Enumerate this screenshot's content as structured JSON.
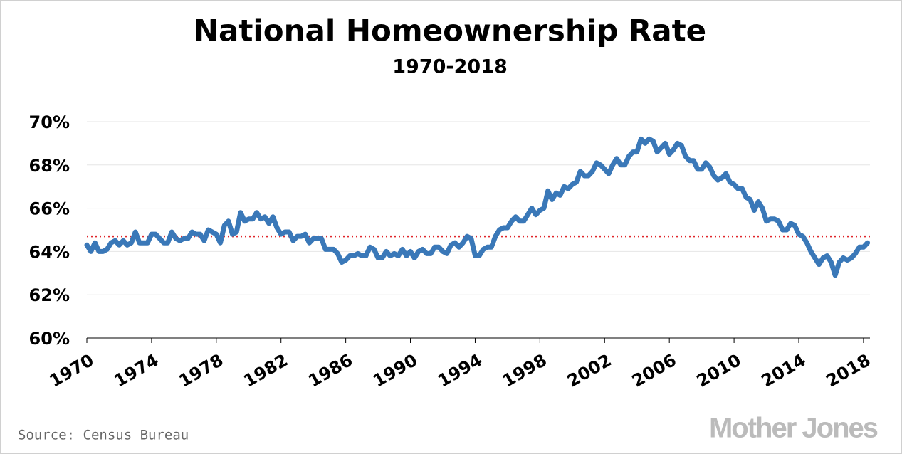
{
  "chart_data": {
    "type": "line",
    "title": "National Homeownership Rate",
    "subtitle": "1970-2018",
    "source": "Source: Census Bureau",
    "logo": "Mother Jones",
    "x": [
      1970,
      1970.25,
      1970.5,
      1970.75,
      1971,
      1971.25,
      1971.5,
      1971.75,
      1972,
      1972.25,
      1972.5,
      1972.75,
      1973,
      1973.25,
      1973.5,
      1973.75,
      1974,
      1974.25,
      1974.5,
      1974.75,
      1975,
      1975.25,
      1975.5,
      1975.75,
      1976,
      1976.25,
      1976.5,
      1976.75,
      1977,
      1977.25,
      1977.5,
      1977.75,
      1978,
      1978.25,
      1978.5,
      1978.75,
      1979,
      1979.25,
      1979.5,
      1979.75,
      1980,
      1980.25,
      1980.5,
      1980.75,
      1981,
      1981.25,
      1981.5,
      1981.75,
      1982,
      1982.25,
      1982.5,
      1982.75,
      1983,
      1983.25,
      1983.5,
      1983.75,
      1984,
      1984.25,
      1984.5,
      1984.75,
      1985,
      1985.25,
      1985.5,
      1985.75,
      1986,
      1986.25,
      1986.5,
      1986.75,
      1987,
      1987.25,
      1987.5,
      1987.75,
      1988,
      1988.25,
      1988.5,
      1988.75,
      1989,
      1989.25,
      1989.5,
      1989.75,
      1990,
      1990.25,
      1990.5,
      1990.75,
      1991,
      1991.25,
      1991.5,
      1991.75,
      1992,
      1992.25,
      1992.5,
      1992.75,
      1993,
      1993.25,
      1993.5,
      1993.75,
      1994,
      1994.25,
      1994.5,
      1994.75,
      1995,
      1995.25,
      1995.5,
      1995.75,
      1996,
      1996.25,
      1996.5,
      1996.75,
      1997,
      1997.25,
      1997.5,
      1997.75,
      1998,
      1998.25,
      1998.5,
      1998.75,
      1999,
      1999.25,
      1999.5,
      1999.75,
      2000,
      2000.25,
      2000.5,
      2000.75,
      2001,
      2001.25,
      2001.5,
      2001.75,
      2002,
      2002.25,
      2002.5,
      2002.75,
      2003,
      2003.25,
      2003.5,
      2003.75,
      2004,
      2004.25,
      2004.5,
      2004.75,
      2005,
      2005.25,
      2005.5,
      2005.75,
      2006,
      2006.25,
      2006.5,
      2006.75,
      2007,
      2007.25,
      2007.5,
      2007.75,
      2008,
      2008.25,
      2008.5,
      2008.75,
      2009,
      2009.25,
      2009.5,
      2009.75,
      2010,
      2010.25,
      2010.5,
      2010.75,
      2011,
      2011.25,
      2011.5,
      2011.75,
      2012,
      2012.25,
      2012.5,
      2012.75,
      2013,
      2013.25,
      2013.5,
      2013.75,
      2014,
      2014.25,
      2014.5,
      2014.75,
      2015,
      2015.25,
      2015.5,
      2015.75,
      2016,
      2016.25,
      2016.5,
      2016.75,
      2017,
      2017.25,
      2017.5,
      2017.75,
      2018,
      2018.25
    ],
    "series": [
      {
        "name": "Homeownership rate",
        "color": "#3a78b8",
        "values": [
          64.3,
          64.0,
          64.4,
          64.0,
          64.0,
          64.1,
          64.4,
          64.5,
          64.3,
          64.5,
          64.3,
          64.4,
          64.9,
          64.4,
          64.4,
          64.4,
          64.8,
          64.8,
          64.6,
          64.4,
          64.4,
          64.9,
          64.6,
          64.5,
          64.6,
          64.6,
          64.9,
          64.8,
          64.8,
          64.5,
          65.0,
          64.9,
          64.8,
          64.4,
          65.2,
          65.4,
          64.8,
          64.9,
          65.8,
          65.4,
          65.5,
          65.5,
          65.8,
          65.5,
          65.6,
          65.3,
          65.6,
          65.1,
          64.8,
          64.9,
          64.9,
          64.5,
          64.7,
          64.7,
          64.8,
          64.4,
          64.6,
          64.6,
          64.6,
          64.1,
          64.1,
          64.1,
          63.9,
          63.5,
          63.6,
          63.8,
          63.8,
          63.9,
          63.8,
          63.8,
          64.2,
          64.1,
          63.7,
          63.7,
          64.0,
          63.8,
          63.9,
          63.8,
          64.1,
          63.8,
          64.0,
          63.7,
          64.0,
          64.1,
          63.9,
          63.9,
          64.2,
          64.2,
          64.0,
          63.9,
          64.3,
          64.4,
          64.2,
          64.4,
          64.7,
          64.6,
          63.8,
          63.8,
          64.1,
          64.2,
          64.2,
          64.7,
          65.0,
          65.1,
          65.1,
          65.4,
          65.6,
          65.4,
          65.4,
          65.7,
          66.0,
          65.7,
          65.9,
          66.0,
          66.8,
          66.4,
          66.7,
          66.6,
          67.0,
          66.9,
          67.1,
          67.2,
          67.7,
          67.5,
          67.5,
          67.7,
          68.1,
          68.0,
          67.8,
          67.6,
          68.0,
          68.3,
          68.0,
          68.0,
          68.4,
          68.6,
          68.6,
          69.2,
          69.0,
          69.2,
          69.1,
          68.6,
          68.8,
          69.0,
          68.5,
          68.7,
          69.0,
          68.9,
          68.4,
          68.2,
          68.2,
          67.8,
          67.8,
          68.1,
          67.9,
          67.5,
          67.3,
          67.4,
          67.6,
          67.2,
          67.1,
          66.9,
          66.9,
          66.5,
          66.4,
          65.9,
          66.3,
          66.0,
          65.4,
          65.5,
          65.5,
          65.4,
          65.0,
          65.0,
          65.3,
          65.2,
          64.8,
          64.7,
          64.4,
          64.0,
          63.7,
          63.4,
          63.7,
          63.8,
          63.5,
          62.9,
          63.5,
          63.7,
          63.6,
          63.7,
          63.9,
          64.2,
          64.2,
          64.4
        ]
      }
    ],
    "reference": {
      "value": 64.7,
      "color": "#e0262b"
    },
    "xlim": [
      1970,
      2018.4
    ],
    "xticks": [
      1970,
      1974,
      1978,
      1982,
      1986,
      1990,
      1994,
      1998,
      2002,
      2006,
      2010,
      2014,
      2018
    ],
    "ylim": [
      60,
      70
    ],
    "yticks": [
      {
        "value": 60,
        "label": "60%"
      },
      {
        "value": 62,
        "label": "62%"
      },
      {
        "value": 64,
        "label": "64%"
      },
      {
        "value": 66,
        "label": "66%"
      },
      {
        "value": 68,
        "label": "68%"
      },
      {
        "value": 70,
        "label": "70%"
      }
    ],
    "grid": true
  }
}
